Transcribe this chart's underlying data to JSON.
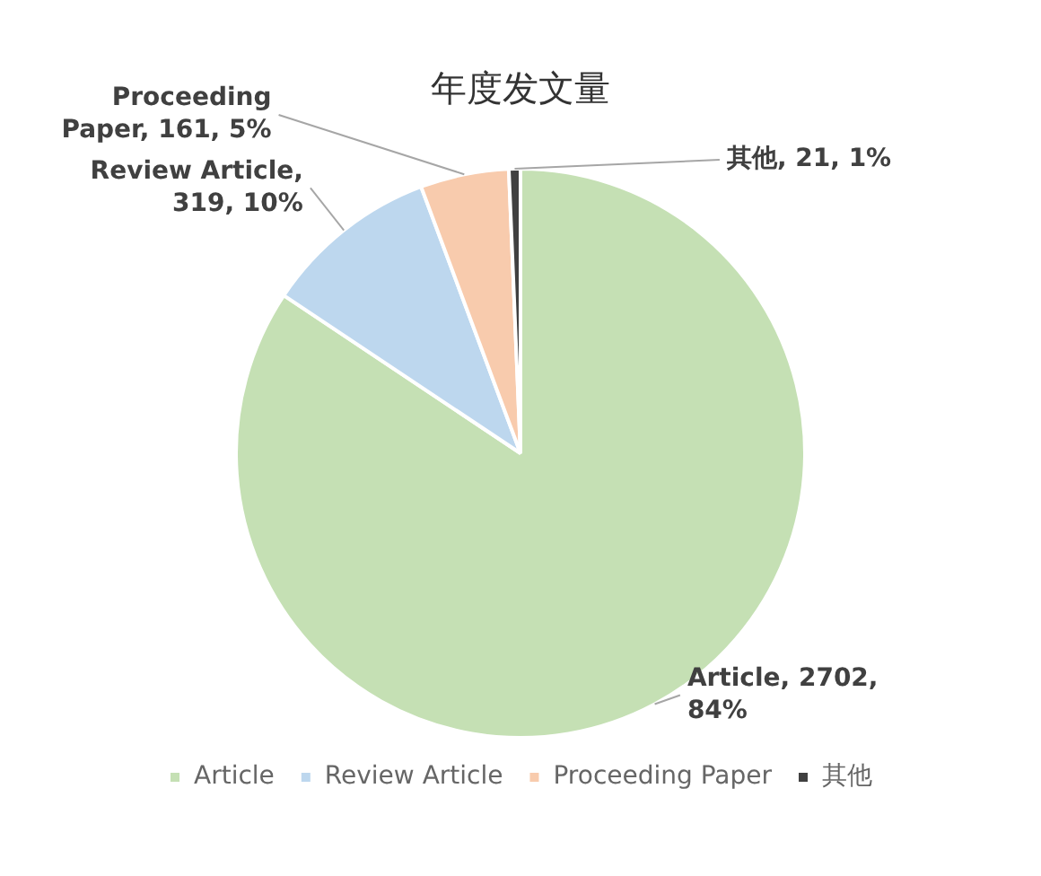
{
  "chart_data": {
    "type": "pie",
    "title": "年度发文量",
    "categories": [
      "Article",
      "Review Article",
      "Proceeding Paper",
      "其他"
    ],
    "values": [
      2702,
      319,
      161,
      21
    ],
    "colors": [
      "#c5e0b4",
      "#bdd7ee",
      "#f8cbad",
      "#404040"
    ],
    "value_labels": [
      "Article, 2702, 84%",
      "Review Article, 319, 10%",
      "Proceeding Paper, 161, 5%",
      "其他, 21, 1%"
    ],
    "legend": "bottom"
  }
}
